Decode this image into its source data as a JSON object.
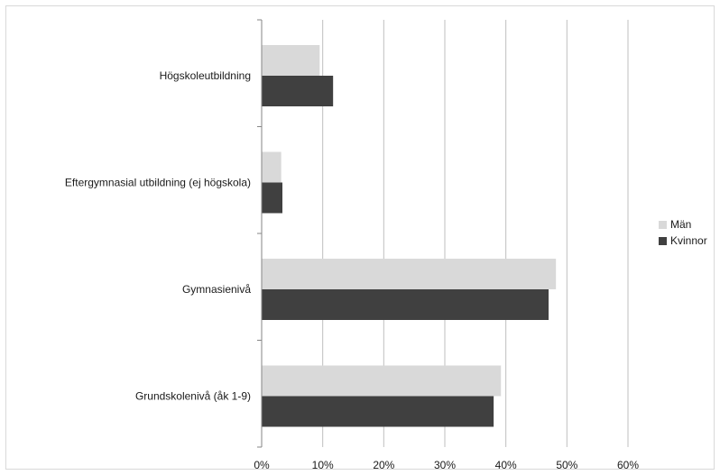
{
  "chart_data": {
    "type": "bar",
    "orientation": "horizontal",
    "categories": [
      "Högskoleutbildning",
      "Eftergymnasial utbildning (ej högskola)",
      "Gymnasienivå",
      "Grundskolenivå (åk 1-9)"
    ],
    "series": [
      {
        "name": "Män",
        "values": [
          9.5,
          3.2,
          48.2,
          39.2
        ],
        "color": "#d9d9d9"
      },
      {
        "name": "Kvinnor",
        "values": [
          11.7,
          3.4,
          47.0,
          38.0
        ],
        "color": "#404040"
      }
    ],
    "x_ticks": [
      "0%",
      "10%",
      "20%",
      "30%",
      "40%",
      "50%",
      "60%"
    ],
    "xlim": [
      0,
      60
    ],
    "grid": true,
    "legend_position": "right",
    "title": "",
    "xlabel": "",
    "ylabel": ""
  }
}
